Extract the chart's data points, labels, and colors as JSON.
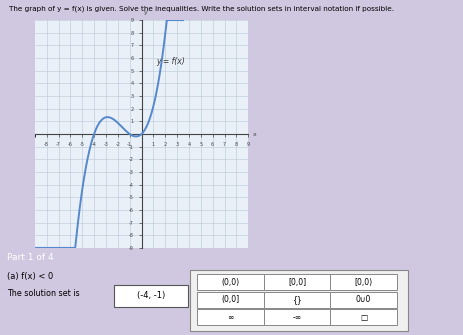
{
  "title": "The graph of y = f(x) is given. Solve the inequalities. Write the solution sets in interval notation if possible.",
  "graph_label": "y = f(x)",
  "bg_color": "#cfc8e0",
  "plot_bg_color": "#eaf0f8",
  "curve_color": "#5588cc",
  "grid_color": "#b8c8d8",
  "axis_color": "#444444",
  "tick_color": "#444444",
  "xlim": [
    -9,
    9
  ],
  "ylim": [
    -9,
    9
  ],
  "part_label": "Part 1 of 4",
  "part_bg": "#a0a0a0",
  "inequality": "(a) f(x) < 0",
  "solution_text": "The solution set is",
  "solution_value": "(-4, -1)",
  "button_rows": [
    [
      "(0,0)",
      "[0,0]",
      "[0,0)"
    ],
    [
      "(0,0]",
      "{}",
      "0∪0"
    ],
    [
      "∞",
      "-∞",
      "□"
    ]
  ]
}
